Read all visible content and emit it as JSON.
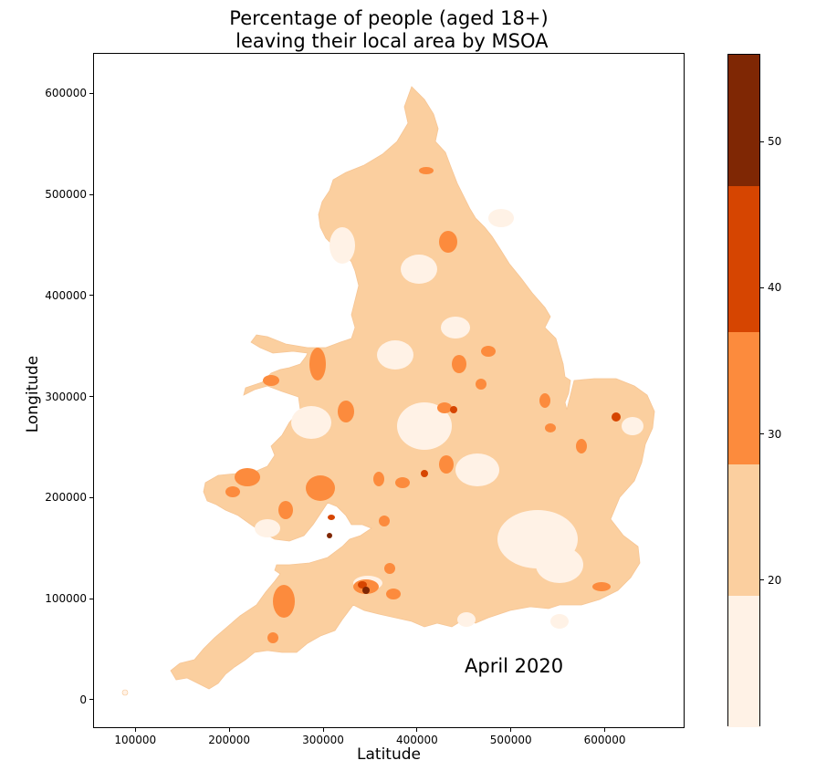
{
  "map": {
    "title_line1": "Percentage of people (aged 18+)",
    "title_line2": " leaving their local area by MSOA",
    "xlabel": "Latitude",
    "ylabel": "Longitude",
    "annotation": "April 2020",
    "x_ticks": [
      "100000",
      "200000",
      "300000",
      "400000",
      "500000",
      "600000"
    ],
    "y_ticks": [
      "0",
      "100000",
      "200000",
      "300000",
      "400000",
      "500000",
      "600000"
    ]
  },
  "chart_data": {
    "type": "choropleth",
    "title": "Percentage of people (aged 18+)\n leaving their local area by MSOA",
    "xlabel": "Latitude",
    "ylabel": "Longitude",
    "xlim": [
      55000,
      685000
    ],
    "ylim": [
      -28000,
      640000
    ],
    "legend": "colorbar-right",
    "colorbar": {
      "range": [
        10,
        56
      ],
      "ticks": [
        20,
        30,
        40,
        50
      ],
      "bins": [
        {
          "from": 10,
          "to": 19,
          "color": "#fff2e6"
        },
        {
          "from": 19,
          "to": 28,
          "color": "#fbcf9f"
        },
        {
          "from": 28,
          "to": 37,
          "color": "#fc8b3d"
        },
        {
          "from": 37,
          "to": 47,
          "color": "#d64501"
        },
        {
          "from": 47,
          "to": 56,
          "color": "#7f2704"
        }
      ]
    }
  }
}
